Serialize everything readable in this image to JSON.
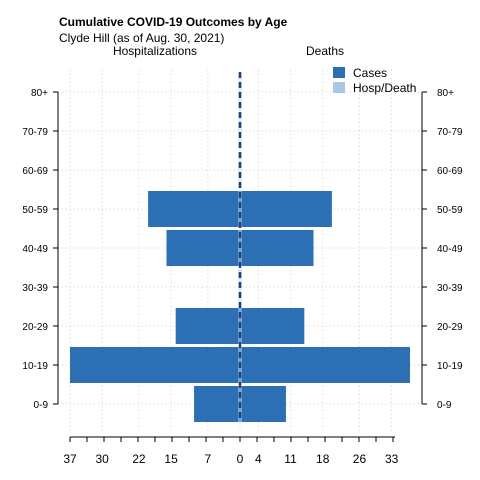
{
  "title": "Cumulative COVID-19 Outcomes by Age",
  "subtitle": "Clyde Hill (as of Aug. 30, 2021)",
  "left_side_label": "Hospitalizations",
  "right_side_label": "Deaths",
  "colors": {
    "cases": "#2c6fb4",
    "hosp_death": "#a9c8e4",
    "center_line": "#1f3f78",
    "grid": "#cfcfcf"
  },
  "chart_data": {
    "type": "bar",
    "orientation": "horizontal-pyramid",
    "title": "Cumulative COVID-19 Outcomes by Age",
    "subtitle": "Clyde Hill (as of Aug. 30, 2021)",
    "categories": [
      "0-9",
      "10-19",
      "20-29",
      "30-39",
      "40-49",
      "50-59",
      "60-69",
      "70-79",
      "80+"
    ],
    "series": [
      {
        "name": "Cases",
        "side": "left",
        "values": [
          10,
          37,
          14,
          0,
          16,
          20,
          0,
          0,
          0
        ]
      },
      {
        "name": "Cases",
        "side": "right",
        "values": [
          10,
          37,
          14,
          0,
          16,
          20,
          0,
          0,
          0
        ]
      },
      {
        "name": "Hosp/Death",
        "side": "left",
        "values": [
          0,
          0,
          0,
          0,
          0,
          0,
          0,
          0,
          0
        ]
      },
      {
        "name": "Hosp/Death",
        "side": "right",
        "values": [
          0,
          0,
          0,
          0,
          0,
          0,
          0,
          0,
          0
        ]
      }
    ],
    "left_label": "Hospitalizations",
    "right_label": "Deaths",
    "x_ticks_left": [
      "37",
      "30",
      "22",
      "15",
      "7",
      "0"
    ],
    "x_ticks_right": [
      "4",
      "11",
      "18",
      "26",
      "33"
    ],
    "xlim": [
      -37,
      37
    ],
    "grid": true,
    "legend": {
      "position": "top-right",
      "entries": [
        {
          "label": "Cases",
          "color": "#2c6fb4"
        },
        {
          "label": "Hosp/Death",
          "color": "#a9c8e4"
        }
      ]
    }
  }
}
